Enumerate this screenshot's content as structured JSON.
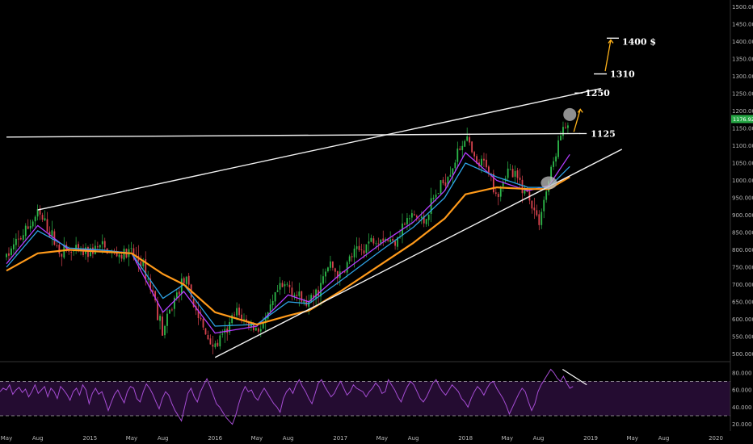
{
  "chart_data": [
    {
      "type": "candlestick",
      "grid": false,
      "x_tick_labels": [
        "May",
        "Aug",
        "2015",
        "May",
        "Aug",
        "2016",
        "May",
        "Aug",
        "2017",
        "May",
        "Aug",
        "2018",
        "May",
        "Aug",
        "2019",
        "May",
        "Aug",
        "2020"
      ],
      "y_axis": {
        "side": "right",
        "range": [
          480,
          1520
        ],
        "ticks": [
          500,
          550,
          600,
          650,
          700,
          750,
          800,
          850,
          900,
          950,
          1000,
          1050,
          1100,
          1150,
          1200,
          1250,
          1300,
          1350,
          1400,
          1450,
          1500
        ],
        "tick_labels": [
          "500.000",
          "550.000",
          "600.000",
          "650.000",
          "700.000",
          "750.000",
          "800.000",
          "850.000",
          "900.000",
          "950.000",
          "1000.000",
          "1050.000",
          "1100.000",
          "1150.000",
          "1200.000",
          "1250.000",
          "1300.000",
          "1350.000",
          "1400.000",
          "1450.000",
          "1500.000"
        ]
      },
      "last_price_label": "1176.920",
      "price_path": [
        {
          "x": "2014-05",
          "y": 780
        },
        {
          "x": "2014-06",
          "y": 820
        },
        {
          "x": "2014-07",
          "y": 860
        },
        {
          "x": "2014-08",
          "y": 905
        },
        {
          "x": "2014-09",
          "y": 860
        },
        {
          "x": "2014-10",
          "y": 800
        },
        {
          "x": "2014-11",
          "y": 795
        },
        {
          "x": "2014-12",
          "y": 790
        },
        {
          "x": "2015-01",
          "y": 795
        },
        {
          "x": "2015-02",
          "y": 810
        },
        {
          "x": "2015-03",
          "y": 790
        },
        {
          "x": "2015-04",
          "y": 785
        },
        {
          "x": "2015-05",
          "y": 790
        },
        {
          "x": "2015-06",
          "y": 760
        },
        {
          "x": "2015-07",
          "y": 680
        },
        {
          "x": "2015-08",
          "y": 560
        },
        {
          "x": "2015-09",
          "y": 650
        },
        {
          "x": "2015-10",
          "y": 720
        },
        {
          "x": "2015-11",
          "y": 640
        },
        {
          "x": "2015-12",
          "y": 560
        },
        {
          "x": "2016-01",
          "y": 520
        },
        {
          "x": "2016-02",
          "y": 560
        },
        {
          "x": "2016-03",
          "y": 620
        },
        {
          "x": "2016-04",
          "y": 590
        },
        {
          "x": "2016-05",
          "y": 570
        },
        {
          "x": "2016-06",
          "y": 600
        },
        {
          "x": "2016-07",
          "y": 680
        },
        {
          "x": "2016-08",
          "y": 700
        },
        {
          "x": "2016-09",
          "y": 660
        },
        {
          "x": "2016-10",
          "y": 640
        },
        {
          "x": "2016-11",
          "y": 690
        },
        {
          "x": "2016-12",
          "y": 760
        },
        {
          "x": "2017-01",
          "y": 720
        },
        {
          "x": "2017-02",
          "y": 780
        },
        {
          "x": "2017-03",
          "y": 800
        },
        {
          "x": "2017-04",
          "y": 830
        },
        {
          "x": "2017-05",
          "y": 840
        },
        {
          "x": "2017-06",
          "y": 820
        },
        {
          "x": "2017-07",
          "y": 870
        },
        {
          "x": "2017-08",
          "y": 900
        },
        {
          "x": "2017-09",
          "y": 880
        },
        {
          "x": "2017-10",
          "y": 950
        },
        {
          "x": "2017-11",
          "y": 1000
        },
        {
          "x": "2017-12",
          "y": 1060
        },
        {
          "x": "2018-01",
          "y": 1130
        },
        {
          "x": "2018-02",
          "y": 1040
        },
        {
          "x": "2018-03",
          "y": 1050
        },
        {
          "x": "2018-04",
          "y": 960
        },
        {
          "x": "2018-05",
          "y": 1030
        },
        {
          "x": "2018-06",
          "y": 1000
        },
        {
          "x": "2018-07",
          "y": 960
        },
        {
          "x": "2018-08",
          "y": 880
        },
        {
          "x": "2018-09",
          "y": 1000
        },
        {
          "x": "2018-10",
          "y": 1120
        },
        {
          "x": "2018-11",
          "y": 1178
        }
      ],
      "moving_averages": [
        {
          "name": "MA fast",
          "color": "#b43cff",
          "points": [
            {
              "x": "2014-05",
              "y": 760
            },
            {
              "x": "2014-08",
              "y": 870
            },
            {
              "x": "2014-11",
              "y": 800
            },
            {
              "x": "2015-02",
              "y": 800
            },
            {
              "x": "2015-05",
              "y": 790
            },
            {
              "x": "2015-08",
              "y": 620
            },
            {
              "x": "2015-10",
              "y": 680
            },
            {
              "x": "2016-01",
              "y": 560
            },
            {
              "x": "2016-05",
              "y": 580
            },
            {
              "x": "2016-08",
              "y": 670
            },
            {
              "x": "2016-10",
              "y": 650
            },
            {
              "x": "2017-01",
              "y": 730
            },
            {
              "x": "2017-05",
              "y": 820
            },
            {
              "x": "2017-08",
              "y": 880
            },
            {
              "x": "2017-11",
              "y": 970
            },
            {
              "x": "2018-01",
              "y": 1080
            },
            {
              "x": "2018-04",
              "y": 1000
            },
            {
              "x": "2018-07",
              "y": 970
            },
            {
              "x": "2018-09",
              "y": 985
            },
            {
              "x": "2018-11",
              "y": 1075
            }
          ]
        },
        {
          "name": "MA mid",
          "color": "#2ea3e6",
          "points": [
            {
              "x": "2014-05",
              "y": 750
            },
            {
              "x": "2014-08",
              "y": 855
            },
            {
              "x": "2014-11",
              "y": 805
            },
            {
              "x": "2015-02",
              "y": 800
            },
            {
              "x": "2015-05",
              "y": 790
            },
            {
              "x": "2015-08",
              "y": 660
            },
            {
              "x": "2015-10",
              "y": 700
            },
            {
              "x": "2016-01",
              "y": 580
            },
            {
              "x": "2016-05",
              "y": 585
            },
            {
              "x": "2016-08",
              "y": 650
            },
            {
              "x": "2016-10",
              "y": 645
            },
            {
              "x": "2017-01",
              "y": 710
            },
            {
              "x": "2017-05",
              "y": 800
            },
            {
              "x": "2017-08",
              "y": 865
            },
            {
              "x": "2017-11",
              "y": 950
            },
            {
              "x": "2018-01",
              "y": 1050
            },
            {
              "x": "2018-04",
              "y": 1010
            },
            {
              "x": "2018-07",
              "y": 980
            },
            {
              "x": "2018-09",
              "y": 980
            },
            {
              "x": "2018-11",
              "y": 1040
            }
          ]
        },
        {
          "name": "MA slow",
          "color": "#ff9a1a",
          "points": [
            {
              "x": "2014-05",
              "y": 740
            },
            {
              "x": "2014-08",
              "y": 790
            },
            {
              "x": "2014-11",
              "y": 800
            },
            {
              "x": "2015-02",
              "y": 795
            },
            {
              "x": "2015-05",
              "y": 790
            },
            {
              "x": "2015-08",
              "y": 730
            },
            {
              "x": "2015-10",
              "y": 700
            },
            {
              "x": "2016-01",
              "y": 620
            },
            {
              "x": "2016-05",
              "y": 585
            },
            {
              "x": "2016-08",
              "y": 610
            },
            {
              "x": "2016-10",
              "y": 625
            },
            {
              "x": "2017-01",
              "y": 680
            },
            {
              "x": "2017-05",
              "y": 760
            },
            {
              "x": "2017-08",
              "y": 820
            },
            {
              "x": "2017-11",
              "y": 890
            },
            {
              "x": "2018-01",
              "y": 960
            },
            {
              "x": "2018-04",
              "y": 980
            },
            {
              "x": "2018-07",
              "y": 975
            },
            {
              "x": "2018-09",
              "y": 975
            },
            {
              "x": "2018-11",
              "y": 1010
            }
          ]
        }
      ],
      "trend_lines": [
        {
          "name": "horizontal resistance",
          "from": {
            "x": "2014-05",
            "y": 1125
          },
          "to": {
            "x": "2018-12",
            "y": 1135
          }
        },
        {
          "name": "upper channel",
          "from": {
            "x": "2014-08",
            "y": 915
          },
          "to": {
            "x": "2019-02",
            "y": 1265
          }
        },
        {
          "name": "lower channel",
          "from": {
            "x": "2016-01",
            "y": 490
          },
          "to": {
            "x": "2019-04",
            "y": 1090
          }
        }
      ],
      "annotations": [
        {
          "label": "1125",
          "y": 1135
        },
        {
          "label": "1250",
          "y": 1252
        },
        {
          "label": "1310",
          "y": 1307
        },
        {
          "label": "1400 $",
          "y": 1400
        }
      ]
    },
    {
      "type": "line",
      "name": "RSI",
      "color": "#a64dd4",
      "y_axis": {
        "range": [
          14,
          92
        ],
        "ticks": [
          20,
          40,
          60,
          80
        ],
        "tick_labels": [
          "20.000",
          "40.000",
          "60.000",
          "80.000"
        ]
      },
      "bands": {
        "upper": 70,
        "lower": 30
      },
      "values": [
        58,
        62,
        60,
        66,
        55,
        60,
        63,
        57,
        61,
        52,
        58,
        66,
        56,
        60,
        64,
        52,
        62,
        58,
        50,
        64,
        60,
        55,
        48,
        58,
        62,
        54,
        66,
        60,
        44,
        56,
        62,
        55,
        58,
        48,
        36,
        46,
        55,
        60,
        52,
        45,
        58,
        64,
        62,
        50,
        46,
        58,
        67,
        62,
        55,
        46,
        38,
        50,
        58,
        54,
        44,
        36,
        30,
        24,
        40,
        56,
        62,
        52,
        46,
        58,
        66,
        73,
        64,
        54,
        44,
        40,
        34,
        28,
        24,
        20,
        30,
        44,
        56,
        64,
        58,
        60,
        52,
        48,
        56,
        62,
        56,
        50,
        44,
        40,
        34,
        50,
        58,
        62,
        56,
        66,
        72,
        64,
        58,
        50,
        44,
        56,
        68,
        72,
        64,
        58,
        52,
        56,
        64,
        70,
        62,
        54,
        58,
        66,
        62,
        60,
        58,
        52,
        58,
        62,
        68,
        64,
        56,
        58,
        72,
        66,
        60,
        52,
        46,
        56,
        64,
        70,
        66,
        58,
        50,
        46,
        52,
        60,
        68,
        72,
        64,
        58,
        54,
        60,
        66,
        62,
        58,
        50,
        46,
        40,
        50,
        58,
        64,
        60,
        54,
        62,
        68,
        70,
        62,
        56,
        50,
        42,
        32,
        40,
        48,
        56,
        62,
        58,
        46,
        36,
        44,
        58,
        66,
        72,
        78,
        84,
        80,
        74,
        70,
        76,
        68,
        62,
        64
      ]
    }
  ]
}
